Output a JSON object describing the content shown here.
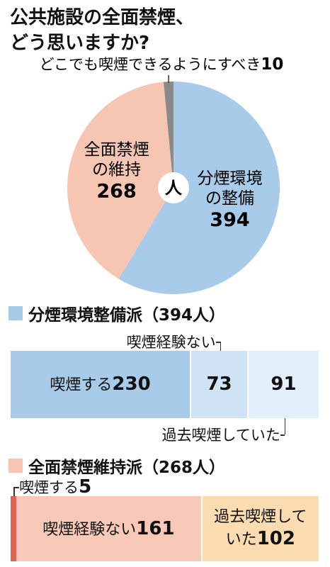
{
  "title": [
    "公共施設の全面禁煙、",
    "どう思いますか?"
  ],
  "chart_data": [
    {
      "type": "pie",
      "unit": "人",
      "categories": [
        [
          "分煙環境",
          "の整備"
        ],
        [
          "全面禁煙",
          "の維持"
        ],
        [
          "どこでも喫煙できるようにすべき"
        ]
      ],
      "values": [
        394,
        268,
        10
      ],
      "colors": [
        "#a9cbea",
        "#f7c6b3",
        "#8a8a8a"
      ]
    },
    {
      "type": "stacked-bar",
      "title": "分煙環境整備派（394人）",
      "color": "#a9cbea",
      "categories": [
        "喫煙する",
        "喫煙経験ない",
        "過去喫煙していた"
      ],
      "values": [
        230,
        73,
        91
      ],
      "colors": [
        "#a9cbea",
        "#cfe3f5",
        "#e3effa"
      ]
    },
    {
      "type": "stacked-bar",
      "title": "全面禁煙維持派（268人）",
      "color": "#f7c6b3",
      "categories": [
        "喫煙する",
        "喫煙経験ない",
        "過去喫煙していた"
      ],
      "values": [
        5,
        161,
        102
      ],
      "colors": [
        "#e2604f",
        "#f7c9b6",
        "#fbdcb0"
      ]
    }
  ]
}
